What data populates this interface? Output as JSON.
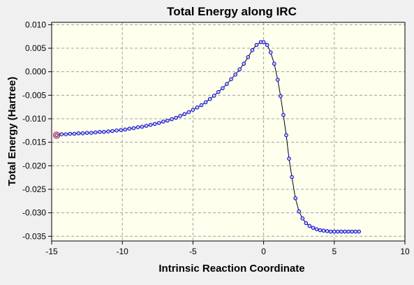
{
  "chart_data": {
    "type": "line",
    "title": "Total Energy along IRC",
    "xlabel": "Intrinsic Reaction Coordinate",
    "ylabel": "Total Energy (Hartree)",
    "xlim": [
      -15,
      10
    ],
    "ylim": [
      -0.036,
      0.0105
    ],
    "x_ticks": [
      -15,
      -10,
      -5,
      0,
      5,
      10
    ],
    "x_tick_labels": [
      "-15",
      "-10",
      "-5",
      "0",
      "5",
      "10"
    ],
    "y_ticks": [
      0.01,
      0.005,
      0.0,
      -0.005,
      -0.01,
      -0.015,
      -0.02,
      -0.025,
      -0.03,
      -0.035
    ],
    "y_tick_labels": [
      "0.010",
      "0.005",
      "0.000",
      "-0.005",
      "-0.010",
      "-0.015",
      "-0.020",
      "-0.025",
      "-0.030",
      "-0.035"
    ],
    "grid": true,
    "colors": {
      "plot_background": "#ffffee",
      "line": "#000000",
      "marker_edge": "#0000cc",
      "marker_fill": "#c8c8ff",
      "highlight": "#cc0000",
      "grid": "#a0a0a0"
    },
    "highlight_point": {
      "x": -14.65,
      "y": -0.0135
    },
    "series": [
      {
        "x": [
          -14.65,
          -14.3,
          -14.0,
          -13.7,
          -13.4,
          -13.1,
          -12.8,
          -12.5,
          -12.2,
          -11.9,
          -11.6,
          -11.3,
          -11.0,
          -10.7,
          -10.4,
          -10.1,
          -9.8,
          -9.5,
          -9.2,
          -8.9,
          -8.6,
          -8.3,
          -8.0,
          -7.7,
          -7.4,
          -7.1,
          -6.8,
          -6.5,
          -6.2,
          -5.9,
          -5.6,
          -5.3,
          -5.0,
          -4.7,
          -4.4,
          -4.1,
          -3.8,
          -3.5,
          -3.2,
          -2.9,
          -2.6,
          -2.3,
          -2.0,
          -1.7,
          -1.4,
          -1.1,
          -0.8,
          -0.5,
          -0.2,
          0.0,
          0.25,
          0.5,
          0.75,
          1.0,
          1.2,
          1.4,
          1.6,
          1.8,
          2.0,
          2.25,
          2.5,
          2.75,
          3.0,
          3.25,
          3.5,
          3.75,
          4.0,
          4.25,
          4.5,
          4.75,
          5.0,
          5.25,
          5.5,
          5.75,
          6.0,
          6.25,
          6.5,
          6.75
        ],
        "y": [
          -0.0135,
          -0.0133,
          -0.0133,
          -0.0132,
          -0.0132,
          -0.0131,
          -0.0131,
          -0.013,
          -0.013,
          -0.0129,
          -0.0128,
          -0.0128,
          -0.0127,
          -0.0126,
          -0.0125,
          -0.0124,
          -0.0123,
          -0.0121,
          -0.012,
          -0.0118,
          -0.0117,
          -0.0115,
          -0.0113,
          -0.0111,
          -0.0109,
          -0.0106,
          -0.0104,
          -0.0101,
          -0.0098,
          -0.0094,
          -0.009,
          -0.0086,
          -0.0081,
          -0.0076,
          -0.0071,
          -0.0065,
          -0.0058,
          -0.0051,
          -0.0043,
          -0.0035,
          -0.0026,
          -0.0016,
          -0.0006,
          0.0005,
          0.0017,
          0.0031,
          0.0046,
          0.0057,
          0.0063,
          0.0063,
          0.0057,
          0.0041,
          0.0017,
          -0.0017,
          -0.0052,
          -0.0092,
          -0.0135,
          -0.0185,
          -0.0224,
          -0.0269,
          -0.0297,
          -0.0312,
          -0.0322,
          -0.0328,
          -0.0332,
          -0.0335,
          -0.0337,
          -0.0338,
          -0.0339,
          -0.034,
          -0.034,
          -0.034,
          -0.034,
          -0.034,
          -0.034,
          -0.034,
          -0.034,
          -0.034
        ]
      }
    ]
  }
}
